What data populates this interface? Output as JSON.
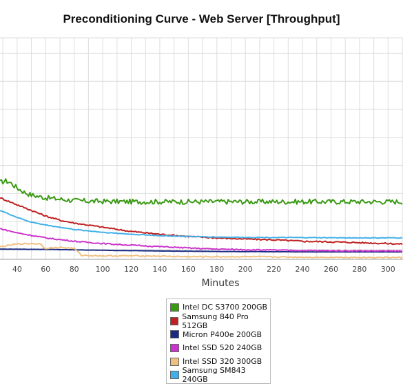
{
  "chart_data": {
    "type": "line",
    "title": "Preconditioning Curve - Web Server [Throughput]",
    "xlabel": "Minutes",
    "ylabel": "",
    "xlim": [
      28,
      310
    ],
    "ylim": [
      0,
      8
    ],
    "x_ticks": [
      40,
      60,
      80,
      100,
      120,
      140,
      160,
      180,
      200,
      220,
      240,
      260,
      280,
      300
    ],
    "grid": true,
    "legend_position": "bottom-center",
    "series": [
      {
        "name": "Intel DC S3700 200GB",
        "color": "#3a9a14",
        "x": [
          28,
          32,
          35,
          40,
          45,
          50,
          55,
          60,
          70,
          80,
          90,
          100,
          120,
          150,
          200,
          250,
          300,
          310
        ],
        "y": [
          2.4,
          2.45,
          2.4,
          2.2,
          2.05,
          1.95,
          1.9,
          1.85,
          1.8,
          1.75,
          1.73,
          1.72,
          1.71,
          1.71,
          1.71,
          1.71,
          1.71,
          1.71
        ]
      },
      {
        "name": "Samsung 840 Pro 512GB",
        "color": "#c02020",
        "x": [
          28,
          40,
          50,
          60,
          70,
          80,
          100,
          120,
          140,
          160,
          180,
          200,
          220,
          240,
          260,
          280,
          300,
          310
        ],
        "y": [
          1.85,
          1.6,
          1.4,
          1.2,
          1.05,
          0.95,
          0.8,
          0.65,
          0.55,
          0.47,
          0.42,
          0.38,
          0.35,
          0.3,
          0.28,
          0.25,
          0.22,
          0.2
        ]
      },
      {
        "name": "Micron P400e 200GB",
        "color": "#1a2a80",
        "x": [
          28,
          60,
          100,
          150,
          200,
          250,
          310
        ],
        "y": [
          0.02,
          0.01,
          -0.02,
          -0.05,
          -0.07,
          -0.08,
          -0.08
        ]
      },
      {
        "name": "Intel SSD 520 240GB",
        "color": "#cc33cc",
        "x": [
          28,
          40,
          60,
          80,
          100,
          120,
          140,
          160,
          180,
          200,
          240,
          280,
          310
        ],
        "y": [
          0.75,
          0.6,
          0.42,
          0.3,
          0.22,
          0.16,
          0.11,
          0.06,
          0.02,
          0.0,
          -0.03,
          -0.04,
          -0.05
        ]
      },
      {
        "name": "Intel SSD 320 300GB",
        "color": "#f0c080",
        "x": [
          28,
          40,
          50,
          57,
          59,
          70,
          80,
          85,
          100,
          130,
          160,
          200,
          250,
          310
        ],
        "y": [
          0.1,
          0.2,
          0.22,
          0.2,
          0.05,
          0.08,
          0.05,
          -0.2,
          -0.22,
          -0.22,
          -0.25,
          -0.25,
          -0.27,
          -0.28
        ]
      },
      {
        "name": "Samsung SM843 240GB",
        "color": "#40b0e8",
        "x": [
          28,
          40,
          50,
          60,
          80,
          100,
          120,
          140,
          160,
          180,
          200,
          240,
          280,
          310
        ],
        "y": [
          1.4,
          1.15,
          0.98,
          0.88,
          0.72,
          0.62,
          0.55,
          0.5,
          0.47,
          0.45,
          0.44,
          0.43,
          0.42,
          0.42
        ]
      }
    ]
  }
}
